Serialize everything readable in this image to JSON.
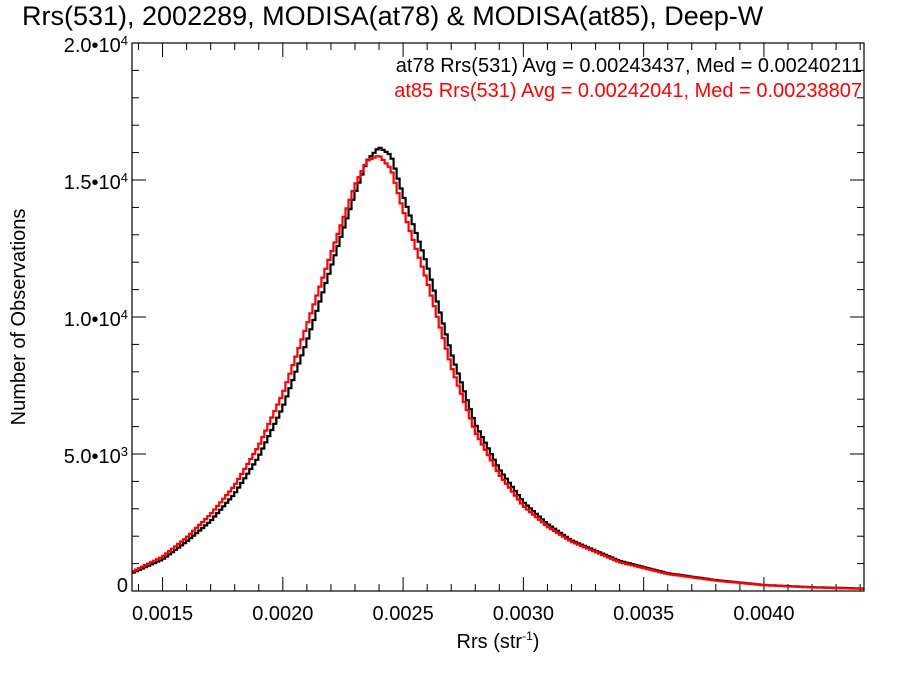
{
  "chart_data": {
    "type": "line",
    "title": "Rrs(531), 2002289, MODISA(at78) & MODISA(at85), Deep-W",
    "xlabel": "Rrs (str",
    "xlabel_sup": "-1",
    "xlabel_close": ")",
    "ylabel": "Number of Observations",
    "xlim": [
      0.001373,
      0.004416
    ],
    "ylim": [
      0,
      20000
    ],
    "x_ticks": [
      {
        "value": 0.0015,
        "label": "0.0015"
      },
      {
        "value": 0.002,
        "label": "0.0020"
      },
      {
        "value": 0.0025,
        "label": "0.0025"
      },
      {
        "value": 0.003,
        "label": "0.0030"
      },
      {
        "value": 0.0035,
        "label": "0.0035"
      },
      {
        "value": 0.004,
        "label": "0.0040"
      }
    ],
    "y_ticks": [
      {
        "value": 0,
        "mant": "0",
        "exp": ""
      },
      {
        "value": 5000,
        "mant": "5.0•10",
        "exp": "3"
      },
      {
        "value": 10000,
        "mant": "1.0•10",
        "exp": "4"
      },
      {
        "value": 15000,
        "mant": "1.5•10",
        "exp": "4"
      },
      {
        "value": 20000,
        "mant": "2.0•10",
        "exp": "4"
      }
    ],
    "legend_placement": "top-right",
    "series": [
      {
        "name": "at78",
        "color": "#000000",
        "legend": "at78 Rrs(531) Avg = 0.00243437, Med = 0.00240211",
        "x": [
          0.001373,
          0.0015,
          0.0016,
          0.0017,
          0.0018,
          0.0019,
          0.002,
          0.0021,
          0.0022,
          0.0023,
          0.00235,
          0.0024,
          0.00245,
          0.0025,
          0.0026,
          0.0027,
          0.0028,
          0.0029,
          0.003,
          0.0031,
          0.0032,
          0.0034,
          0.0036,
          0.0038,
          0.004,
          0.0042,
          0.004416
        ],
        "y": [
          650,
          1150,
          1800,
          2550,
          3550,
          4900,
          6700,
          9100,
          11800,
          14500,
          15700,
          16200,
          15900,
          14450,
          11900,
          8700,
          6100,
          4450,
          3250,
          2450,
          1850,
          1100,
          650,
          400,
          220,
          140,
          90
        ]
      },
      {
        "name": "at85",
        "color": "#ff0000",
        "legend": "at85 Rrs(531) Avg = 0.00242041, Med = 0.00238807",
        "x": [
          0.001373,
          0.0015,
          0.0016,
          0.0017,
          0.0018,
          0.0019,
          0.002,
          0.0021,
          0.0022,
          0.0023,
          0.00235,
          0.0024,
          0.00245,
          0.0025,
          0.0026,
          0.0027,
          0.0028,
          0.0029,
          0.003,
          0.0031,
          0.0032,
          0.0034,
          0.0036,
          0.0038,
          0.004,
          0.0042,
          0.004416
        ],
        "y": [
          700,
          1250,
          1950,
          2800,
          3850,
          5300,
          7200,
          9700,
          12300,
          14800,
          15700,
          15900,
          15400,
          13900,
          11300,
          8200,
          5800,
          4250,
          3100,
          2350,
          1800,
          1050,
          620,
          380,
          210,
          130,
          80
        ]
      }
    ]
  }
}
